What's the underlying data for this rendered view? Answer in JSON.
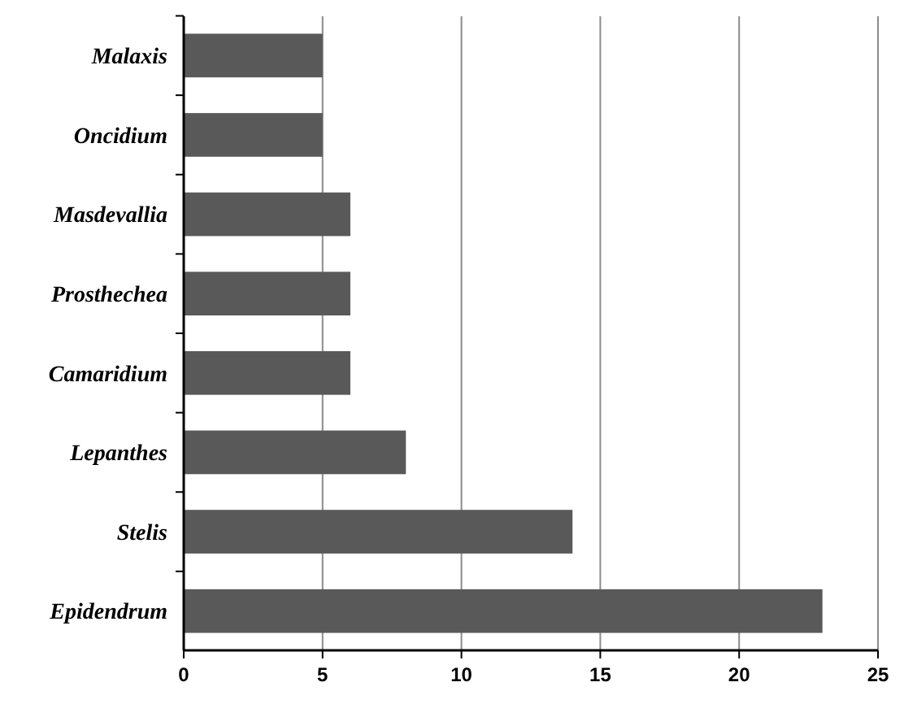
{
  "chart_data": {
    "type": "bar",
    "orientation": "horizontal",
    "categories": [
      "Malaxis",
      "Oncidium",
      "Masdevallia",
      "Prosthechea",
      "Camaridium",
      "Lepanthes",
      "Stelis",
      "Epidendrum"
    ],
    "values": [
      5,
      5,
      6,
      6,
      6,
      8,
      14,
      23
    ],
    "color": "#595959",
    "xlim": [
      0,
      25
    ],
    "xticks": [
      0,
      5,
      10,
      15,
      20,
      25
    ],
    "grid": "x"
  }
}
